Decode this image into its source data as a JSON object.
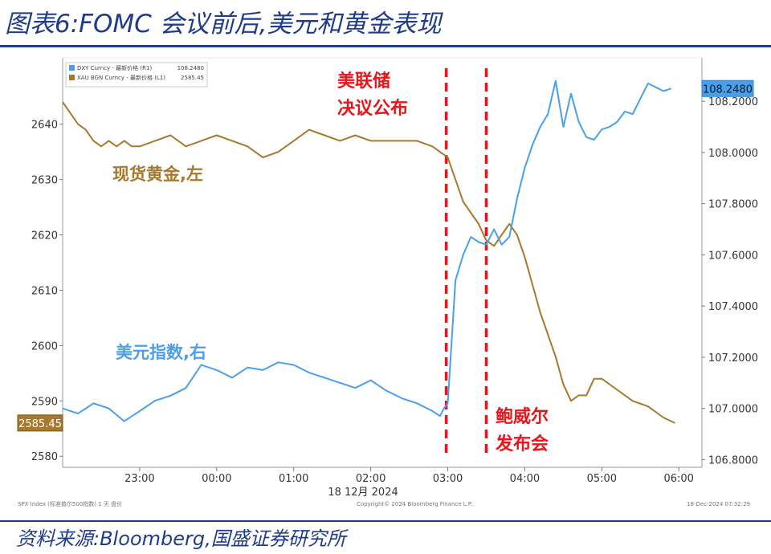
{
  "figure": {
    "title": "图表6:FOMC 会议前后,美元和黄金表现",
    "source": "资料来源:Bloomberg,国盛证券研究所"
  },
  "chart_data": {
    "type": "line",
    "xlabel": "18 12月 2024",
    "x_ticks": [
      "23:00",
      "00:00",
      "01:00",
      "02:00",
      "03:00",
      "04:00",
      "05:00",
      "06:00"
    ],
    "y_left": {
      "ylim": [
        2578,
        2652
      ],
      "ticks": [
        2580,
        2590,
        2600,
        2610,
        2620,
        2630,
        2640
      ]
    },
    "y_right": {
      "ylim": [
        106.77,
        108.37
      ],
      "ticks": [
        "106.8000",
        "107.0000",
        "107.2000",
        "107.4000",
        "107.6000",
        "107.8000",
        "108.0000",
        "108.2000"
      ]
    },
    "legend": {
      "placement": "top-left",
      "entries": [
        {
          "label": "DXY Curncy - 最新价格 (R1)",
          "value": "108.2480",
          "color": "#4a9fe8"
        },
        {
          "label": "XAU BGN Curncy - 最新价格 (L1)",
          "value": "2585.45",
          "color": "#a8782c"
        }
      ]
    },
    "series": [
      {
        "name": "XAU BGN Curncy - 最新价格 (L1)",
        "axis": "left",
        "color": "#a8782c",
        "last_value_label": "2585.45",
        "x": [
          22.0,
          22.1,
          22.2,
          22.3,
          22.4,
          22.5,
          22.6,
          22.7,
          22.8,
          22.9,
          23.0,
          23.2,
          23.4,
          23.6,
          23.8,
          24.0,
          24.2,
          24.4,
          24.6,
          24.8,
          25.0,
          25.2,
          25.4,
          25.6,
          25.8,
          26.0,
          26.2,
          26.4,
          26.6,
          26.8,
          26.9,
          27.0,
          27.1,
          27.2,
          27.3,
          27.4,
          27.5,
          27.6,
          27.7,
          27.8,
          27.9,
          28.0,
          28.1,
          28.2,
          28.3,
          28.4,
          28.5,
          28.6,
          28.7,
          28.8,
          28.9,
          29.0,
          29.2,
          29.4,
          29.6,
          29.8,
          29.95
        ],
        "values": [
          2644,
          2642,
          2640,
          2639,
          2637,
          2636,
          2637,
          2636,
          2637,
          2636,
          2636,
          2637,
          2638,
          2636,
          2637,
          2638,
          2637,
          2636,
          2634,
          2635,
          2637,
          2639,
          2638,
          2637,
          2638,
          2637,
          2637,
          2637,
          2637,
          2636,
          2635,
          2634,
          2630,
          2626,
          2624,
          2622,
          2619,
          2618,
          2620,
          2622,
          2620,
          2616,
          2611,
          2606,
          2602,
          2598,
          2593,
          2590,
          2591,
          2591,
          2594,
          2594,
          2592,
          2590,
          2589,
          2587,
          2586
        ]
      },
      {
        "name": "DXY Curncy - 最新价格 (R1)",
        "axis": "right",
        "color": "#4a9fe8",
        "last_value_label": "108.2480",
        "x": [
          22.0,
          22.2,
          22.4,
          22.6,
          22.8,
          23.0,
          23.2,
          23.4,
          23.6,
          23.8,
          24.0,
          24.2,
          24.4,
          24.6,
          24.8,
          25.0,
          25.2,
          25.4,
          25.6,
          25.8,
          26.0,
          26.2,
          26.4,
          26.6,
          26.8,
          26.9,
          26.95,
          27.0,
          27.05,
          27.1,
          27.2,
          27.3,
          27.4,
          27.5,
          27.6,
          27.7,
          27.8,
          27.9,
          28.0,
          28.1,
          28.2,
          28.3,
          28.4,
          28.5,
          28.6,
          28.7,
          28.8,
          28.9,
          29.0,
          29.1,
          29.2,
          29.3,
          29.4,
          29.6,
          29.8,
          29.9
        ],
        "values": [
          107.0,
          106.98,
          107.02,
          107.0,
          106.95,
          106.99,
          107.03,
          107.05,
          107.08,
          107.17,
          107.15,
          107.12,
          107.16,
          107.15,
          107.18,
          107.17,
          107.14,
          107.12,
          107.1,
          107.08,
          107.11,
          107.07,
          107.04,
          107.02,
          106.99,
          106.97,
          107.0,
          107.02,
          107.26,
          107.5,
          107.6,
          107.67,
          107.65,
          107.64,
          107.7,
          107.64,
          107.67,
          107.82,
          107.94,
          108.03,
          108.1,
          108.15,
          108.28,
          108.1,
          108.23,
          108.12,
          108.06,
          108.05,
          108.09,
          108.1,
          108.12,
          108.16,
          108.15,
          108.27,
          108.24,
          108.25
        ]
      }
    ],
    "annotations": {
      "fomc": "美联储\n决议公布",
      "gold": "现货黄金,左",
      "dxy": "美元指数,右",
      "powell": "鲍威尔\n发布会"
    },
    "event_lines": {
      "x": [
        26.98,
        27.5
      ],
      "color": "#e8151b"
    },
    "footer_left": "SPX Index (标准普尔500指数) 1 天  盘价",
    "footer_center": "Copyright© 2024 Bloomberg Finance L.P.",
    "footer_right": "18-Dec-2024 07:32:29"
  }
}
